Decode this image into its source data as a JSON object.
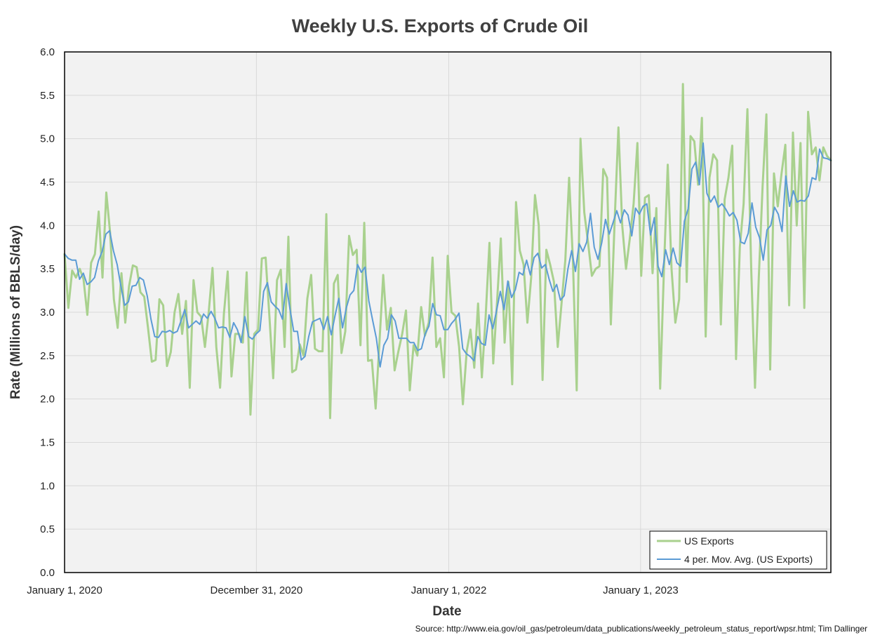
{
  "chart_data": {
    "type": "line",
    "title": "Weekly U.S. Exports of Crude Oil",
    "xlabel": "Date",
    "ylabel": "Rate (Millions of BBLS/day)",
    "source": "Source: http://www.eia.gov/oil_gas/petroleum/data_publications/weekly_petroleum_status_report/wpsr.html; Tim Dallinger",
    "x_start": "2020-01-01",
    "x_end": "2023-12-29",
    "x_ticks": [
      {
        "date": "2020-01-01",
        "label": "January 1, 2020"
      },
      {
        "date": "2020-12-31",
        "label": "December 31, 2020"
      },
      {
        "date": "2022-01-01",
        "label": "January 1, 2022"
      },
      {
        "date": "2023-01-01",
        "label": "January 1, 2023"
      }
    ],
    "ylim": [
      0,
      6
    ],
    "y_ticks": [
      "0.0",
      "0.5",
      "1.0",
      "1.5",
      "2.0",
      "2.5",
      "3.0",
      "3.5",
      "4.0",
      "4.5",
      "5.0",
      "5.5",
      "6.0"
    ],
    "grid": true,
    "legend_position": "bottom-right",
    "colors": {
      "us_exports": "#a9d18e",
      "moving_avg": "#5b9bd5",
      "plot_bg": "#f2f2f2",
      "grid": "#d9d9d9"
    },
    "series": [
      {
        "name": "US Exports",
        "values": [
          3.67,
          3.05,
          3.48,
          3.4,
          3.5,
          3.38,
          2.97,
          3.57,
          3.67,
          4.16,
          3.4,
          4.38,
          3.92,
          3.15,
          2.82,
          3.45,
          2.88,
          3.3,
          3.54,
          3.52,
          3.23,
          3.18,
          2.82,
          2.43,
          2.45,
          3.15,
          3.08,
          2.38,
          2.54,
          3.0,
          3.21,
          2.75,
          3.13,
          2.13,
          3.37,
          3.0,
          2.95,
          2.6,
          3.0,
          3.51,
          2.6,
          2.13,
          2.98,
          3.47,
          2.26,
          2.75,
          2.75,
          2.65,
          3.46,
          1.82,
          2.75,
          2.8,
          3.62,
          3.63,
          2.95,
          2.24,
          3.37,
          3.49,
          2.6,
          3.87,
          2.31,
          2.34,
          2.63,
          2.5,
          3.16,
          3.43,
          2.58,
          2.55,
          2.55,
          4.13,
          1.78,
          3.33,
          3.43,
          2.53,
          2.78,
          3.88,
          3.66,
          3.72,
          2.62,
          4.03,
          2.44,
          2.45,
          1.89,
          2.65,
          3.43,
          2.8,
          3.05,
          2.33,
          2.55,
          2.75,
          3.02,
          2.1,
          2.62,
          2.5,
          3.06,
          2.73,
          2.88,
          3.63,
          2.6,
          2.7,
          2.25,
          3.65,
          3.0,
          2.96,
          2.6,
          1.94,
          2.55,
          2.8,
          2.36,
          3.1,
          2.25,
          2.95,
          3.8,
          2.41,
          3.12,
          3.85,
          2.65,
          3.35,
          2.17,
          4.27,
          3.71,
          3.55,
          2.88,
          3.4,
          4.35,
          4.0,
          2.22,
          3.72,
          3.55,
          3.35,
          2.6,
          3.1,
          3.6,
          4.55,
          3.6,
          2.1,
          5.0,
          4.15,
          3.8,
          3.42,
          3.5,
          3.53,
          4.65,
          4.55,
          2.86,
          4.05,
          5.13,
          4.0,
          3.5,
          3.85,
          4.25,
          4.95,
          3.42,
          4.32,
          4.35,
          3.45,
          4.2,
          2.12,
          3.5,
          4.7,
          3.5,
          2.88,
          3.15,
          5.63,
          3.35,
          5.03,
          4.97,
          4.47,
          5.24,
          2.72,
          4.55,
          4.82,
          4.75,
          2.86,
          4.3,
          4.55,
          4.92,
          2.46,
          3.75,
          4.25,
          5.34,
          3.5,
          2.13,
          3.4,
          4.45,
          5.28,
          2.34,
          4.6,
          4.22,
          4.6,
          4.93,
          3.08,
          5.07,
          4.0,
          4.95,
          3.05,
          5.31,
          4.82,
          4.9,
          4.52,
          4.9,
          4.8,
          4.75
        ]
      },
      {
        "name": "4 per. Mov. Avg. (US Exports)",
        "values": [
          3.67,
          3.62,
          3.6,
          3.6,
          3.38,
          3.45,
          3.32,
          3.35,
          3.4,
          3.59,
          3.7,
          3.9,
          3.94,
          3.71,
          3.55,
          3.3,
          3.08,
          3.12,
          3.3,
          3.31,
          3.4,
          3.37,
          3.19,
          2.92,
          2.72,
          2.71,
          2.78,
          2.77,
          2.79,
          2.76,
          2.78,
          2.9,
          3.03,
          2.82,
          2.86,
          2.9,
          2.86,
          2.98,
          2.93,
          3.01,
          2.93,
          2.82,
          2.83,
          2.82,
          2.71,
          2.88,
          2.8,
          2.65,
          2.95,
          2.72,
          2.69,
          2.75,
          2.79,
          3.24,
          3.34,
          3.12,
          3.07,
          3.03,
          2.92,
          3.33,
          3.04,
          2.78,
          2.78,
          2.45,
          2.49,
          2.72,
          2.89,
          2.91,
          2.93,
          2.8,
          2.95,
          2.74,
          2.96,
          3.16,
          2.82,
          3.05,
          3.2,
          3.25,
          3.55,
          3.46,
          3.52,
          3.13,
          2.91,
          2.7,
          2.37,
          2.62,
          2.7,
          2.97,
          2.9,
          2.7,
          2.7,
          2.7,
          2.65,
          2.65,
          2.56,
          2.58,
          2.75,
          2.84,
          3.1,
          2.97,
          2.96,
          2.8,
          2.8,
          2.87,
          2.92,
          2.99,
          2.58,
          2.52,
          2.49,
          2.44,
          2.72,
          2.64,
          2.62,
          2.97,
          2.81,
          3.02,
          3.24,
          3.03,
          3.36,
          3.17,
          3.26,
          3.46,
          3.43,
          3.6,
          3.43,
          3.63,
          3.68,
          3.51,
          3.55,
          3.38,
          3.24,
          3.32,
          3.14,
          3.19,
          3.5,
          3.71,
          3.47,
          3.79,
          3.7,
          3.81,
          4.14,
          3.75,
          3.61,
          3.8,
          4.07,
          3.9,
          4.03,
          4.17,
          4.03,
          4.18,
          4.12,
          3.88,
          4.2,
          4.13,
          4.22,
          4.25,
          3.89,
          4.09,
          3.53,
          3.41,
          3.72,
          3.55,
          3.74,
          3.57,
          3.53,
          4.05,
          4.19,
          4.65,
          4.73,
          4.47,
          4.95,
          4.37,
          4.27,
          4.34,
          4.21,
          4.25,
          4.19,
          4.11,
          4.15,
          4.06,
          3.81,
          3.79,
          3.91,
          4.26,
          3.98,
          3.86,
          3.6,
          3.95,
          4.0,
          4.21,
          4.13,
          3.93,
          4.57,
          4.22,
          4.4,
          4.27,
          4.29,
          4.28,
          4.34,
          4.55,
          4.53,
          4.88,
          4.78,
          4.77,
          4.75
        ]
      }
    ]
  }
}
